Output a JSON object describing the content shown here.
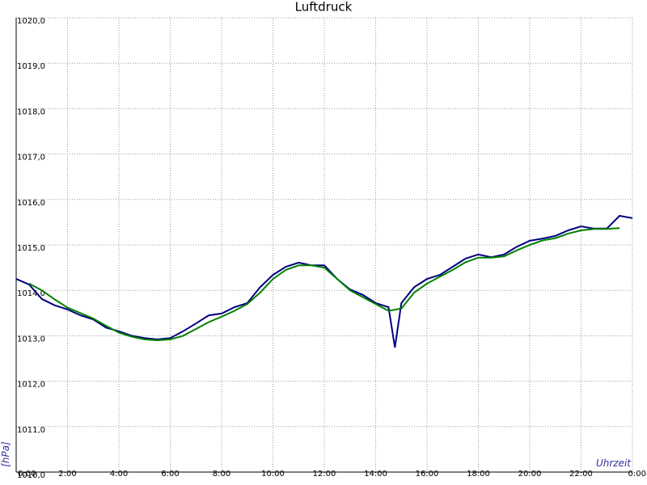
{
  "chart_data": {
    "type": "line",
    "title": "Luftdruck",
    "y_label": "[hPa]",
    "x_label": "Uhrzeit",
    "xlim": [
      0,
      24
    ],
    "ylim": [
      1010,
      1020
    ],
    "grid": true,
    "xticks": [
      {
        "value": 0,
        "label": "0:00"
      },
      {
        "value": 2,
        "label": "2:00"
      },
      {
        "value": 4,
        "label": "4:00"
      },
      {
        "value": 6,
        "label": "6:00"
      },
      {
        "value": 8,
        "label": "8:00"
      },
      {
        "value": 10,
        "label": "10:00"
      },
      {
        "value": 12,
        "label": "12:00"
      },
      {
        "value": 14,
        "label": "14:00"
      },
      {
        "value": 16,
        "label": "16:00"
      },
      {
        "value": 18,
        "label": "18:00"
      },
      {
        "value": 20,
        "label": "20:00"
      },
      {
        "value": 22,
        "label": "22:00"
      },
      {
        "value": 24,
        "label": "0:00"
      }
    ],
    "yticks": [
      {
        "value": 1010,
        "label": "1010,0"
      },
      {
        "value": 1011,
        "label": "1011,0"
      },
      {
        "value": 1012,
        "label": "1012,0"
      },
      {
        "value": 1013,
        "label": "1013,0"
      },
      {
        "value": 1014,
        "label": "1014,0"
      },
      {
        "value": 1015,
        "label": "1015,0"
      },
      {
        "value": 1016,
        "label": "1016,0"
      },
      {
        "value": 1017,
        "label": "1017,0"
      },
      {
        "value": 1018,
        "label": "1018,0"
      },
      {
        "value": 1019,
        "label": "1019,0"
      },
      {
        "value": 1020,
        "label": "1020,0"
      }
    ],
    "series": [
      {
        "color": "#000080",
        "x": [
          0,
          0.5,
          1,
          1.5,
          2,
          2.5,
          3,
          3.5,
          4,
          4.5,
          5,
          5.5,
          6,
          6.5,
          7,
          7.5,
          8,
          8.5,
          9,
          9.5,
          10,
          10.5,
          11,
          11.5,
          12,
          12.5,
          13,
          13.5,
          14,
          14.5,
          14.75,
          15,
          15.5,
          16,
          16.5,
          17,
          17.5,
          18,
          18.5,
          19,
          19.5,
          20,
          20.5,
          21,
          21.5,
          22,
          22.5,
          23,
          23.5,
          24
        ],
        "values": [
          1014.25,
          1014.13,
          1013.81,
          1013.67,
          1013.58,
          1013.45,
          1013.36,
          1013.18,
          1013.1,
          1013.0,
          1012.95,
          1012.92,
          1012.95,
          1013.1,
          1013.27,
          1013.45,
          1013.49,
          1013.63,
          1013.72,
          1014.07,
          1014.34,
          1014.52,
          1014.61,
          1014.55,
          1014.55,
          1014.25,
          1014.02,
          1013.9,
          1013.72,
          1013.63,
          1012.74,
          1013.72,
          1014.07,
          1014.25,
          1014.34,
          1014.52,
          1014.7,
          1014.79,
          1014.73,
          1014.79,
          1014.96,
          1015.09,
          1015.14,
          1015.2,
          1015.32,
          1015.41,
          1015.36,
          1015.36,
          1015.64,
          1015.59
        ]
      },
      {
        "color": "#008000",
        "x": [
          0.5,
          1,
          1.5,
          2,
          2.5,
          3,
          3.5,
          4,
          4.5,
          5,
          5.5,
          6,
          6.5,
          7,
          7.5,
          8,
          8.5,
          9,
          9.5,
          10,
          10.5,
          11,
          11.5,
          12,
          12.5,
          13,
          13.5,
          14,
          14.5,
          15,
          15.5,
          16,
          16.5,
          17,
          17.5,
          18,
          18.5,
          19,
          19.5,
          20,
          20.5,
          21,
          21.5,
          22,
          22.5,
          23,
          23.5
        ],
        "values": [
          1014.15,
          1014.0,
          1013.8,
          1013.62,
          1013.5,
          1013.38,
          1013.22,
          1013.07,
          1012.98,
          1012.92,
          1012.9,
          1012.92,
          1013.0,
          1013.15,
          1013.3,
          1013.42,
          1013.55,
          1013.7,
          1013.95,
          1014.25,
          1014.45,
          1014.55,
          1014.55,
          1014.5,
          1014.25,
          1014.0,
          1013.85,
          1013.7,
          1013.55,
          1013.6,
          1013.95,
          1014.15,
          1014.3,
          1014.45,
          1014.62,
          1014.72,
          1014.72,
          1014.75,
          1014.88,
          1015.0,
          1015.1,
          1015.15,
          1015.25,
          1015.32,
          1015.35,
          1015.35,
          1015.37
        ]
      }
    ]
  }
}
